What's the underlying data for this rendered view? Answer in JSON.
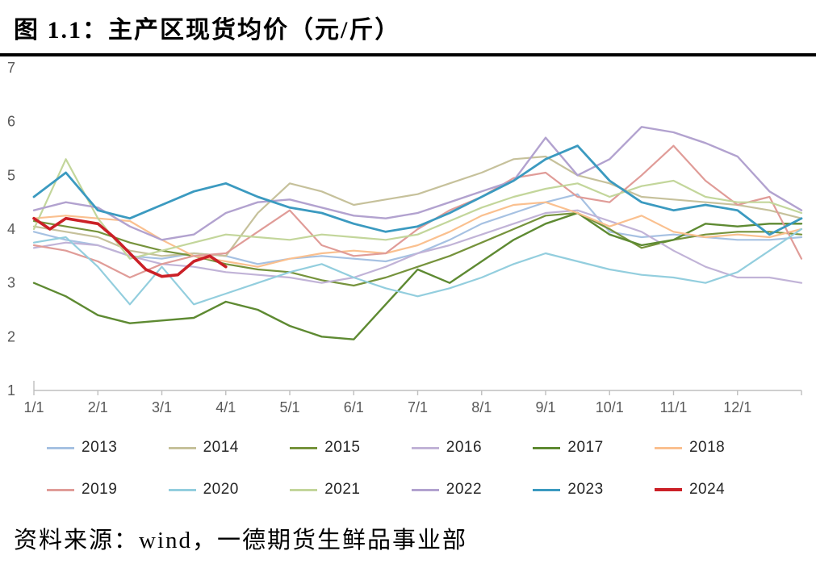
{
  "header": {
    "title": "图 1.1：主产区现货均价（元/斤）"
  },
  "source": {
    "text": "资料来源：wind，一德期货生鲜品事业部"
  },
  "chart_data": {
    "type": "line",
    "title": "主产区现货均价（元/斤）",
    "unit": "元/斤",
    "ylim": [
      1,
      7
    ],
    "yticks": [
      7,
      6,
      5,
      4,
      3,
      2,
      1
    ],
    "xtick_labels": [
      "1/1",
      "2/1",
      "3/1",
      "4/1",
      "5/1",
      "6/1",
      "7/1",
      "8/1",
      "9/1",
      "10/1",
      "11/1",
      "12/1"
    ],
    "x_axis_note": "x = months elapsed since 1/1 (0 = Jan 1, 12 = Dec 31); series sampled semi-monthly unless x given",
    "grid": false,
    "legend_position": "bottom",
    "axis_color": "#bfbfbf",
    "tick_label_color": "#595959",
    "series": [
      {
        "name": "2013",
        "color": "#a6c1e2",
        "line_width": 2.2,
        "values": [
          3.95,
          3.8,
          3.7,
          3.5,
          3.45,
          3.55,
          3.5,
          3.35,
          3.45,
          3.5,
          3.45,
          3.4,
          3.55,
          3.8,
          4.1,
          4.3,
          4.5,
          4.65,
          3.95,
          3.85,
          3.9,
          3.85,
          3.8,
          3.8,
          3.85
        ]
      },
      {
        "name": "2014",
        "color": "#c6c19b",
        "line_width": 2.2,
        "values": [
          4.05,
          3.95,
          3.85,
          3.6,
          3.5,
          3.55,
          3.5,
          4.3,
          4.85,
          4.7,
          4.45,
          4.55,
          4.65,
          4.85,
          5.05,
          5.3,
          5.35,
          5.0,
          4.85,
          4.6,
          4.55,
          4.5,
          4.45,
          4.35,
          4.2
        ]
      },
      {
        "name": "2015",
        "color": "#76933c",
        "line_width": 2.2,
        "values": [
          4.15,
          4.05,
          3.95,
          3.75,
          3.6,
          3.5,
          3.35,
          3.25,
          3.2,
          3.05,
          2.95,
          3.1,
          3.3,
          3.5,
          3.75,
          4.0,
          4.25,
          4.3,
          4.0,
          3.65,
          3.8,
          3.9,
          3.95,
          3.95,
          3.9
        ]
      },
      {
        "name": "2016",
        "color": "#c1b3d7",
        "line_width": 2.2,
        "values": [
          3.65,
          3.75,
          3.7,
          3.5,
          3.35,
          3.3,
          3.2,
          3.15,
          3.1,
          3.0,
          3.1,
          3.3,
          3.55,
          3.7,
          3.9,
          4.1,
          4.3,
          4.35,
          4.15,
          3.95,
          3.6,
          3.3,
          3.1,
          3.1,
          3.0
        ]
      },
      {
        "name": "2017",
        "color": "#5e8a32",
        "line_width": 2.4,
        "values": [
          3.0,
          2.75,
          2.4,
          2.25,
          2.3,
          2.35,
          2.65,
          2.5,
          2.2,
          2.0,
          1.95,
          2.6,
          3.25,
          3.0,
          3.4,
          3.8,
          4.1,
          4.3,
          3.9,
          3.7,
          3.8,
          4.1,
          4.05,
          4.1,
          4.1
        ]
      },
      {
        "name": "2018",
        "color": "#fac08f",
        "line_width": 2.2,
        "values": [
          4.2,
          4.25,
          4.2,
          4.15,
          3.8,
          3.5,
          3.4,
          3.3,
          3.45,
          3.55,
          3.6,
          3.55,
          3.7,
          3.95,
          4.25,
          4.45,
          4.5,
          4.3,
          4.05,
          4.25,
          3.95,
          3.85,
          3.9,
          3.85,
          4.0
        ]
      },
      {
        "name": "2019",
        "color": "#e09c98",
        "line_width": 2.2,
        "values": [
          3.7,
          3.6,
          3.4,
          3.1,
          3.35,
          3.5,
          3.55,
          3.95,
          4.35,
          3.7,
          3.5,
          3.55,
          4.0,
          4.35,
          4.6,
          4.95,
          5.05,
          4.6,
          4.5,
          5.0,
          5.55,
          4.9,
          4.45,
          4.6,
          3.45
        ]
      },
      {
        "name": "2020",
        "color": "#93cede",
        "line_width": 2.2,
        "values": [
          3.75,
          3.85,
          3.3,
          2.6,
          3.3,
          2.6,
          2.8,
          3.0,
          3.2,
          3.35,
          3.1,
          2.9,
          2.75,
          2.9,
          3.1,
          3.35,
          3.55,
          3.4,
          3.25,
          3.15,
          3.1,
          3.0,
          3.2,
          3.6,
          4.0
        ]
      },
      {
        "name": "2021",
        "color": "#c3d69b",
        "line_width": 2.2,
        "values": [
          4.0,
          5.3,
          4.2,
          3.45,
          3.6,
          3.75,
          3.9,
          3.85,
          3.8,
          3.9,
          3.85,
          3.8,
          3.9,
          4.15,
          4.4,
          4.6,
          4.75,
          4.85,
          4.6,
          4.8,
          4.9,
          4.6,
          4.5,
          4.5,
          4.3
        ]
      },
      {
        "name": "2022",
        "color": "#b2a2cf",
        "line_width": 2.4,
        "values": [
          4.35,
          4.5,
          4.4,
          4.05,
          3.8,
          3.9,
          4.3,
          4.5,
          4.55,
          4.4,
          4.25,
          4.2,
          4.3,
          4.5,
          4.7,
          4.9,
          5.7,
          5.0,
          5.3,
          5.9,
          5.8,
          5.6,
          5.35,
          4.7,
          4.35
        ]
      },
      {
        "name": "2023",
        "color": "#3b9ac0",
        "line_width": 2.8,
        "values": [
          4.6,
          5.05,
          4.35,
          4.2,
          4.45,
          4.7,
          4.85,
          4.6,
          4.4,
          4.3,
          4.1,
          3.95,
          4.05,
          4.3,
          4.6,
          4.9,
          5.3,
          5.55,
          4.9,
          4.5,
          4.35,
          4.45,
          4.35,
          3.9,
          4.2
        ]
      },
      {
        "name": "2024",
        "color": "#cb2027",
        "line_width": 3.6,
        "x": [
          0,
          0.25,
          0.5,
          0.75,
          1,
          1.25,
          1.5,
          1.75,
          2,
          2.25,
          2.5,
          2.75,
          3
        ],
        "values": [
          4.2,
          4.0,
          4.2,
          4.15,
          4.1,
          3.85,
          3.55,
          3.25,
          3.12,
          3.15,
          3.4,
          3.5,
          3.3
        ]
      }
    ]
  }
}
